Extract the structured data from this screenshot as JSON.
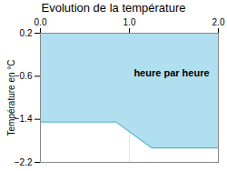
{
  "chart_data": {
    "type": "area",
    "title": "Evolution de la température",
    "ylabel": "Température en °C",
    "x": [
      0,
      0.85,
      1.25,
      2.0
    ],
    "series": [
      {
        "type": "area",
        "values": [
          0.2,
          0.2,
          0.2,
          0.2
        ],
        "color": "#b0dff0"
      },
      {
        "type": "line",
        "values": [
          -1.45,
          -1.45,
          -1.93,
          -1.93
        ],
        "color": "#5ab4d0"
      }
    ],
    "xlim": [
      0,
      2
    ],
    "ylim": [
      -2.2,
      0.2
    ],
    "xticks": [
      0,
      1,
      2
    ],
    "yticks": [
      0.2,
      -0.6,
      -1.4,
      -2.2
    ],
    "grid": true,
    "annotations": [
      {
        "text": "heure par heure",
        "x": 1.05,
        "y": -0.55
      }
    ]
  }
}
